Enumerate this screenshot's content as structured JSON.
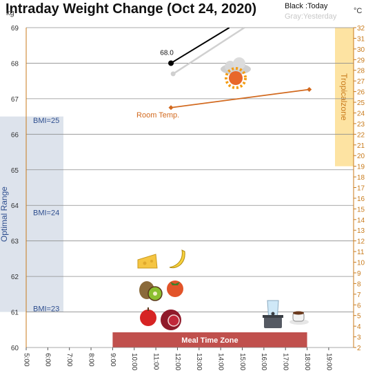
{
  "chart_data": {
    "type": "line",
    "title": "Intraday Weight Change (Oct 24, 2020)",
    "left_axis": {
      "unit": "kg",
      "ylim": [
        60,
        69
      ],
      "ticks": [
        60,
        61,
        62,
        63,
        64,
        65,
        66,
        67,
        68,
        69
      ]
    },
    "right_axis": {
      "unit": "°C",
      "ylim": [
        2,
        32
      ],
      "ticks": [
        2,
        3,
        4,
        5,
        6,
        7,
        8,
        9,
        10,
        11,
        12,
        13,
        14,
        15,
        16,
        17,
        18,
        19,
        20,
        21,
        22,
        23,
        24,
        25,
        26,
        27,
        28,
        29,
        30,
        31,
        32
      ]
    },
    "x_axis": {
      "range": [
        5,
        20
      ],
      "ticks": [
        5,
        6,
        7,
        8,
        9,
        10,
        11,
        12,
        13,
        14,
        15,
        16,
        17,
        18,
        19
      ],
      "tick_labels": [
        "5:00",
        "6:00",
        "7:00",
        "8:00",
        "9:00",
        "10:00",
        "11:00",
        "12:00",
        "13:00",
        "14:00",
        "15:00",
        "16:00",
        "17:00",
        "18:00",
        "19:00"
      ]
    },
    "legend": {
      "today": "Black :Today",
      "yesterday": "Gray:Yesterday",
      "placement": "top-right"
    },
    "series": [
      {
        "name": "Today",
        "color": "#000000",
        "axis": "left",
        "points": [
          [
            11.7,
            68.0
          ],
          [
            14.4,
            69.0
          ]
        ],
        "labels": [
          "68.0"
        ]
      },
      {
        "name": "Yesterday",
        "color": "#d0d0d0",
        "axis": "left",
        "points": [
          [
            11.8,
            67.7
          ],
          [
            15.1,
            69.0
          ]
        ]
      },
      {
        "name": "Room Temp.",
        "color": "#d2691e",
        "axis": "right",
        "points": [
          [
            11.7,
            24.5
          ],
          [
            18.1,
            26.2
          ]
        ]
      }
    ],
    "bands": [
      {
        "label": "Optimal Range",
        "axis": "left",
        "range": [
          61.0,
          66.5
        ],
        "color": "#dde3ec"
      },
      {
        "label": "Tropicalzone",
        "axis": "right",
        "range": [
          19,
          32
        ],
        "color": "#fde3a2"
      },
      {
        "label": "Meal Time Zone",
        "axis": "x",
        "range": [
          9.0,
          18.0
        ],
        "color": "#c0504d"
      }
    ],
    "bmi_markers": [
      {
        "label": "BMI=25",
        "kg": 66.4
      },
      {
        "label": "BMI=24",
        "kg": 63.8
      },
      {
        "label": "BMI=23",
        "kg": 61.1
      }
    ],
    "icons": [
      "cheese-icon",
      "banana-icon",
      "kiwi-icon",
      "persimmon-icon",
      "apple-icon",
      "pomegranate-icon",
      "water-glass-icon",
      "cooking-pot-icon",
      "coffee-cup-icon",
      "cloud-icon",
      "sun-icon"
    ]
  }
}
